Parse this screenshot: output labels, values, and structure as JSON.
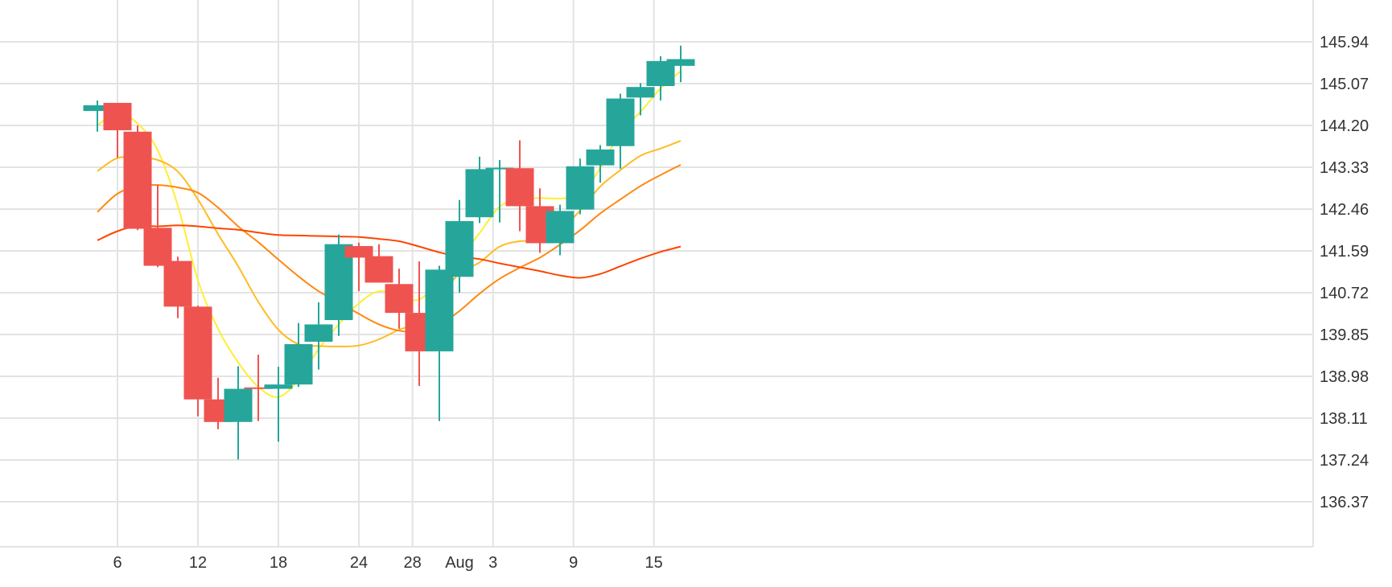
{
  "chart_data": {
    "type": "candlestick",
    "title": "",
    "xlabel": "",
    "ylabel": "",
    "grid": true,
    "y_axis_position": "right",
    "ylim": [
      135.5,
      146.7
    ],
    "y_ticks": [
      136.37,
      137.24,
      138.11,
      138.98,
      139.85,
      140.72,
      141.59,
      142.46,
      143.33,
      144.2,
      145.07,
      145.94
    ],
    "x_ticks": [
      {
        "day": 6,
        "label": "6"
      },
      {
        "day": 12,
        "label": "12"
      },
      {
        "day": 18,
        "label": "18"
      },
      {
        "day": 24,
        "label": "24"
      },
      {
        "day": 28,
        "label": "28"
      },
      {
        "day": 31.5,
        "label": "Aug"
      },
      {
        "day": 34,
        "label": "3"
      },
      {
        "day": 40,
        "label": "9"
      },
      {
        "day": 46,
        "label": "15"
      }
    ],
    "x_range_days": [
      1.7,
      48.5
    ],
    "candles": [
      {
        "day": 4.5,
        "open": 144.5,
        "high": 144.72,
        "low": 144.07,
        "close": 144.62
      },
      {
        "day": 6.0,
        "open": 144.67,
        "high": 144.67,
        "low": 143.53,
        "close": 144.1
      },
      {
        "day": 7.5,
        "open": 144.07,
        "high": 144.2,
        "low": 142.02,
        "close": 142.05
      },
      {
        "day": 9.0,
        "open": 142.07,
        "high": 142.97,
        "low": 141.25,
        "close": 141.28
      },
      {
        "day": 10.5,
        "open": 141.38,
        "high": 141.47,
        "low": 140.19,
        "close": 140.43
      },
      {
        "day": 12.0,
        "open": 140.43,
        "high": 140.45,
        "low": 138.15,
        "close": 138.5
      },
      {
        "day": 13.5,
        "open": 138.5,
        "high": 138.95,
        "low": 137.88,
        "close": 138.03
      },
      {
        "day": 15.0,
        "open": 138.03,
        "high": 139.19,
        "low": 137.25,
        "close": 138.72
      },
      {
        "day": 16.5,
        "open": 138.75,
        "high": 139.43,
        "low": 138.05,
        "close": 138.72
      },
      {
        "day": 18.0,
        "open": 138.72,
        "high": 139.18,
        "low": 137.62,
        "close": 138.81
      },
      {
        "day": 19.5,
        "open": 138.81,
        "high": 140.09,
        "low": 138.76,
        "close": 139.65
      },
      {
        "day": 21.0,
        "open": 139.7,
        "high": 140.52,
        "low": 139.12,
        "close": 140.06
      },
      {
        "day": 22.5,
        "open": 140.15,
        "high": 141.93,
        "low": 139.82,
        "close": 141.73
      },
      {
        "day": 24.0,
        "open": 141.69,
        "high": 141.76,
        "low": 140.75,
        "close": 141.45
      },
      {
        "day": 25.5,
        "open": 141.48,
        "high": 141.73,
        "low": 140.95,
        "close": 140.93
      },
      {
        "day": 27.0,
        "open": 140.9,
        "high": 141.22,
        "low": 139.97,
        "close": 140.3
      },
      {
        "day": 28.5,
        "open": 140.3,
        "high": 141.37,
        "low": 138.78,
        "close": 139.5
      },
      {
        "day": 30.0,
        "open": 139.5,
        "high": 141.28,
        "low": 138.05,
        "close": 141.2
      },
      {
        "day": 31.5,
        "open": 141.05,
        "high": 142.65,
        "low": 140.72,
        "close": 142.21
      },
      {
        "day": 33.0,
        "open": 142.29,
        "high": 143.55,
        "low": 142.17,
        "close": 143.29
      },
      {
        "day": 34.5,
        "open": 143.32,
        "high": 143.48,
        "low": 142.18,
        "close": 143.32
      },
      {
        "day": 36.0,
        "open": 143.31,
        "high": 143.89,
        "low": 142.0,
        "close": 142.52
      },
      {
        "day": 37.5,
        "open": 142.52,
        "high": 142.89,
        "low": 141.55,
        "close": 141.75
      },
      {
        "day": 39.0,
        "open": 141.75,
        "high": 142.55,
        "low": 141.5,
        "close": 142.42
      },
      {
        "day": 40.5,
        "open": 142.45,
        "high": 143.51,
        "low": 142.35,
        "close": 143.35
      },
      {
        "day": 42.0,
        "open": 143.37,
        "high": 143.79,
        "low": 143.01,
        "close": 143.7
      },
      {
        "day": 43.5,
        "open": 143.77,
        "high": 144.86,
        "low": 143.3,
        "close": 144.76
      },
      {
        "day": 45.0,
        "open": 144.78,
        "high": 145.08,
        "low": 144.41,
        "close": 145.0
      },
      {
        "day": 46.5,
        "open": 145.02,
        "high": 145.64,
        "low": 144.72,
        "close": 145.54
      },
      {
        "day": 48.0,
        "open": 145.44,
        "high": 145.86,
        "low": 145.1,
        "close": 145.58
      }
    ],
    "ma_series": [
      {
        "color": "#FFEE33",
        "points": [
          [
            4.5,
            144.2
          ],
          [
            6,
            144.46
          ],
          [
            7.5,
            144.24
          ],
          [
            9,
            143.68
          ],
          [
            10.5,
            142.53
          ],
          [
            12,
            140.98
          ],
          [
            13.5,
            139.97
          ],
          [
            15,
            139.27
          ],
          [
            16.5,
            138.76
          ],
          [
            18,
            138.55
          ],
          [
            19.5,
            138.91
          ],
          [
            21,
            139.55
          ],
          [
            22.5,
            140.06
          ],
          [
            24,
            140.5
          ],
          [
            25.5,
            140.75
          ],
          [
            27,
            140.64
          ],
          [
            28.5,
            140.58
          ],
          [
            30,
            140.97
          ],
          [
            31.5,
            141.42
          ],
          [
            33,
            141.96
          ],
          [
            34.5,
            142.51
          ],
          [
            36,
            142.66
          ],
          [
            37.5,
            142.69
          ],
          [
            39,
            142.68
          ],
          [
            40.5,
            142.77
          ],
          [
            42,
            143.31
          ],
          [
            43.5,
            144.06
          ],
          [
            45,
            144.48
          ],
          [
            46.5,
            144.97
          ],
          [
            48,
            145.33
          ]
        ]
      },
      {
        "color": "#FFBB22",
        "points": [
          [
            4.5,
            143.25
          ],
          [
            6,
            143.52
          ],
          [
            7.5,
            143.53
          ],
          [
            9,
            143.48
          ],
          [
            10.5,
            143.24
          ],
          [
            12,
            142.66
          ],
          [
            13.5,
            141.94
          ],
          [
            15,
            141.27
          ],
          [
            16.5,
            140.53
          ],
          [
            18,
            139.95
          ],
          [
            19.5,
            139.65
          ],
          [
            21,
            139.61
          ],
          [
            22.5,
            139.6
          ],
          [
            24,
            139.62
          ],
          [
            25.5,
            139.75
          ],
          [
            27,
            139.95
          ],
          [
            28.5,
            140.1
          ],
          [
            30,
            140.62
          ],
          [
            31.5,
            141.12
          ],
          [
            33,
            141.35
          ],
          [
            34.5,
            141.68
          ],
          [
            36,
            141.79
          ],
          [
            37.5,
            141.81
          ],
          [
            39,
            142.02
          ],
          [
            40.5,
            142.43
          ],
          [
            42,
            142.93
          ],
          [
            43.5,
            143.27
          ],
          [
            45,
            143.57
          ],
          [
            46.5,
            143.72
          ],
          [
            48,
            143.88
          ]
        ]
      },
      {
        "color": "#FF8811",
        "points": [
          [
            4.5,
            142.4
          ],
          [
            6,
            142.78
          ],
          [
            7.5,
            142.93
          ],
          [
            9,
            142.96
          ],
          [
            10.5,
            142.91
          ],
          [
            12,
            142.8
          ],
          [
            13.5,
            142.49
          ],
          [
            15,
            142.1
          ],
          [
            16.5,
            141.77
          ],
          [
            18,
            141.41
          ],
          [
            19.5,
            141.06
          ],
          [
            21,
            140.75
          ],
          [
            22.5,
            140.52
          ],
          [
            24,
            140.28
          ],
          [
            25.5,
            140.06
          ],
          [
            27,
            139.93
          ],
          [
            28.5,
            139.91
          ],
          [
            30,
            140.05
          ],
          [
            31.5,
            140.34
          ],
          [
            33,
            140.7
          ],
          [
            34.5,
            141.01
          ],
          [
            36,
            141.24
          ],
          [
            37.5,
            141.45
          ],
          [
            39,
            141.72
          ],
          [
            40.5,
            142.02
          ],
          [
            42,
            142.37
          ],
          [
            43.5,
            142.66
          ],
          [
            45,
            142.94
          ],
          [
            46.5,
            143.17
          ],
          [
            48,
            143.38
          ]
        ]
      },
      {
        "color": "#FF4400",
        "points": [
          [
            4.5,
            141.81
          ],
          [
            6,
            142.0
          ],
          [
            7.5,
            142.11
          ],
          [
            9,
            142.1
          ],
          [
            10.5,
            142.12
          ],
          [
            12,
            142.1
          ],
          [
            13.5,
            142.06
          ],
          [
            15,
            142.03
          ],
          [
            16.5,
            141.97
          ],
          [
            18,
            141.92
          ],
          [
            19.5,
            141.91
          ],
          [
            21,
            141.9
          ],
          [
            22.5,
            141.89
          ],
          [
            24,
            141.88
          ],
          [
            25.5,
            141.84
          ],
          [
            27,
            141.79
          ],
          [
            28.5,
            141.68
          ],
          [
            30,
            141.56
          ],
          [
            31.5,
            141.47
          ],
          [
            33,
            141.42
          ],
          [
            34.5,
            141.33
          ],
          [
            36,
            141.25
          ],
          [
            37.5,
            141.17
          ],
          [
            39,
            141.08
          ],
          [
            40.5,
            141.03
          ],
          [
            42,
            141.11
          ],
          [
            43.5,
            141.27
          ],
          [
            45,
            141.43
          ],
          [
            46.5,
            141.57
          ],
          [
            48,
            141.68
          ]
        ]
      }
    ],
    "colors": {
      "up": "#26A69A",
      "down": "#EF5350",
      "grid": "#E3E3E3",
      "axis_text": "#333333"
    }
  }
}
